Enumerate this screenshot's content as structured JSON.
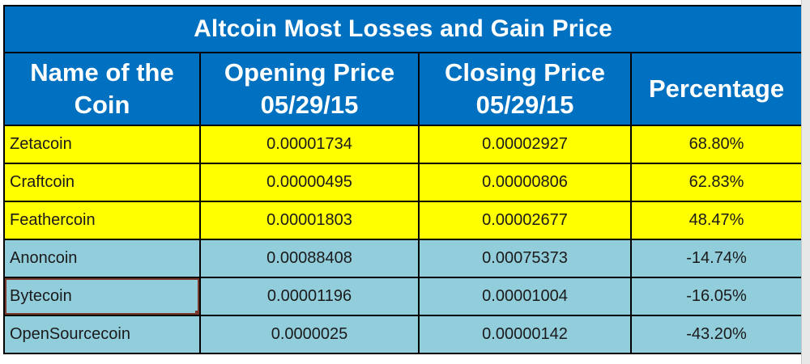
{
  "title": "Altcoin Most Losses and Gain Price",
  "headers": {
    "name_line1": "Name of the",
    "name_line2": "Coin",
    "open_line1": "Opening Price",
    "open_line2": "05/29/15",
    "close_line1": "Closing Price",
    "close_line2": "05/29/15",
    "pct": "Percentage"
  },
  "colors": {
    "header_bg": "#0070c0",
    "gain_row_bg": "#ffff00",
    "loss_row_bg": "#92cddc"
  },
  "rows": [
    {
      "name": "Zetacoin",
      "open": "0.00001734",
      "close": "0.00002927",
      "pct": "68.80%"
    },
    {
      "name": "Craftcoin",
      "open": "0.00000495",
      "close": "0.00000806",
      "pct": "62.83%"
    },
    {
      "name": "Feathercoin",
      "open": "0.00001803",
      "close": "0.00002677",
      "pct": "48.47%"
    },
    {
      "name": "Anoncoin",
      "open": "0.00088408",
      "close": "0.00075373",
      "pct": "-14.74%"
    },
    {
      "name": "Bytecoin",
      "open": "0.00001196",
      "close": "0.00001004",
      "pct": "-16.05%"
    },
    {
      "name": "OpenSourcecoin",
      "open": "0.0000025",
      "close": "0.00000142",
      "pct": "-43.20%"
    }
  ]
}
